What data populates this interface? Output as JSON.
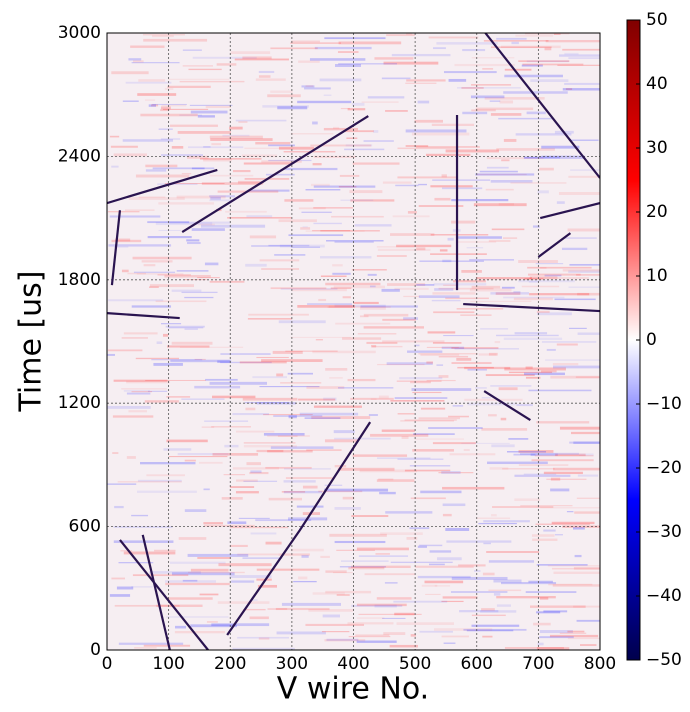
{
  "chart_data": {
    "type": "heatmap",
    "xlabel": "V wire No.",
    "ylabel": "Time [us]",
    "xlim": [
      0,
      800
    ],
    "ylim": [
      0,
      3000
    ],
    "xticks": [
      0,
      100,
      200,
      300,
      400,
      500,
      600,
      700,
      800
    ],
    "yticks": [
      0,
      600,
      1200,
      1800,
      2400,
      3000
    ],
    "grid": true,
    "track_color": "#2a1450",
    "tracks": [
      {
        "x": [
          195,
          313,
          427
        ],
        "y": [
          73,
          583,
          1108
        ]
      },
      {
        "x": [
          21,
          164
        ],
        "y": [
          535,
          0
        ]
      },
      {
        "x": [
          58,
          102
        ],
        "y": [
          560,
          0
        ]
      },
      {
        "x": [
          122,
          424
        ],
        "y": [
          2032,
          2596
        ]
      },
      {
        "x": [
          0,
          179
        ],
        "y": [
          2173,
          2334
        ]
      },
      {
        "x": [
          0,
          118
        ],
        "y": [
          1638,
          1614
        ]
      },
      {
        "x": [
          614,
          800
        ],
        "y": [
          3000,
          2295
        ]
      },
      {
        "x": [
          578,
          800
        ],
        "y": [
          1682,
          1648
        ]
      },
      {
        "x": [
          612,
          687
        ],
        "y": [
          1259,
          1118
        ]
      },
      {
        "x": [
          703,
          800
        ],
        "y": [
          2100,
          2173
        ]
      },
      {
        "x": [
          700,
          752
        ],
        "y": [
          1911,
          2027
        ]
      },
      {
        "x": [
          21,
          8
        ],
        "y": [
          2138,
          1774
        ]
      },
      {
        "x": [
          568,
          568
        ],
        "y": [
          2601,
          1750
        ]
      }
    ],
    "colorbar": {
      "lim": [
        -50,
        50
      ],
      "colormap": [
        "#00004c",
        "#0000ff",
        "#ffffff",
        "#ff0000",
        "#800000"
      ],
      "ticks": [
        {
          "value": -50,
          "label": "−50"
        },
        {
          "value": -40,
          "label": "−40"
        },
        {
          "value": -30,
          "label": "−30"
        },
        {
          "value": -20,
          "label": "−20"
        },
        {
          "value": -10,
          "label": "−10"
        },
        0,
        10,
        20,
        30,
        40,
        50
      ]
    }
  }
}
